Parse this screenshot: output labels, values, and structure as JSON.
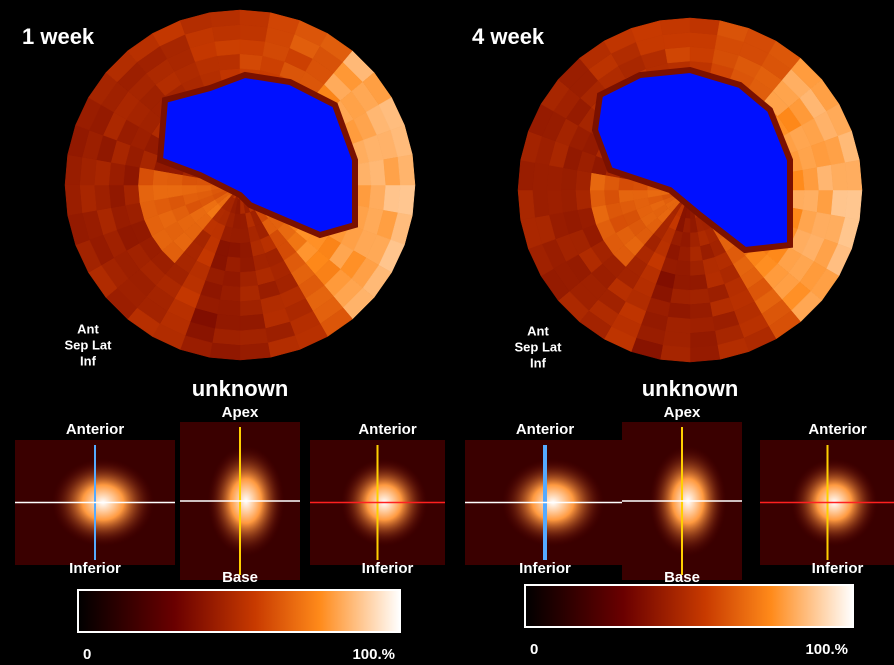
{
  "panels": [
    {
      "title": "1 week",
      "orientation": {
        "ant": "Ant",
        "sep_lat": "Sep Lat",
        "inf": "Inf"
      },
      "caption": "unknown",
      "short_axis": {
        "top": "Anterior",
        "bottom": "Inferior"
      },
      "vertical_long_axis": {
        "top": "Apex",
        "bottom": "Base"
      },
      "horizontal_long_axis": {
        "top": "Anterior",
        "bottom": "Inferior"
      },
      "colorbar": {
        "min": "0",
        "max": "100.%"
      }
    },
    {
      "title": "4 week",
      "orientation": {
        "ant": "Ant",
        "sep_lat": "Sep Lat",
        "inf": "Inf"
      },
      "caption": "unknown",
      "short_axis": {
        "top": "Anterior",
        "bottom": "Inferior"
      },
      "vertical_long_axis": {
        "top": "Apex",
        "bottom": "Base"
      },
      "horizontal_long_axis": {
        "top": "Anterior",
        "bottom": "Inferior"
      },
      "colorbar": {
        "min": "0",
        "max": "100.%"
      }
    }
  ]
}
